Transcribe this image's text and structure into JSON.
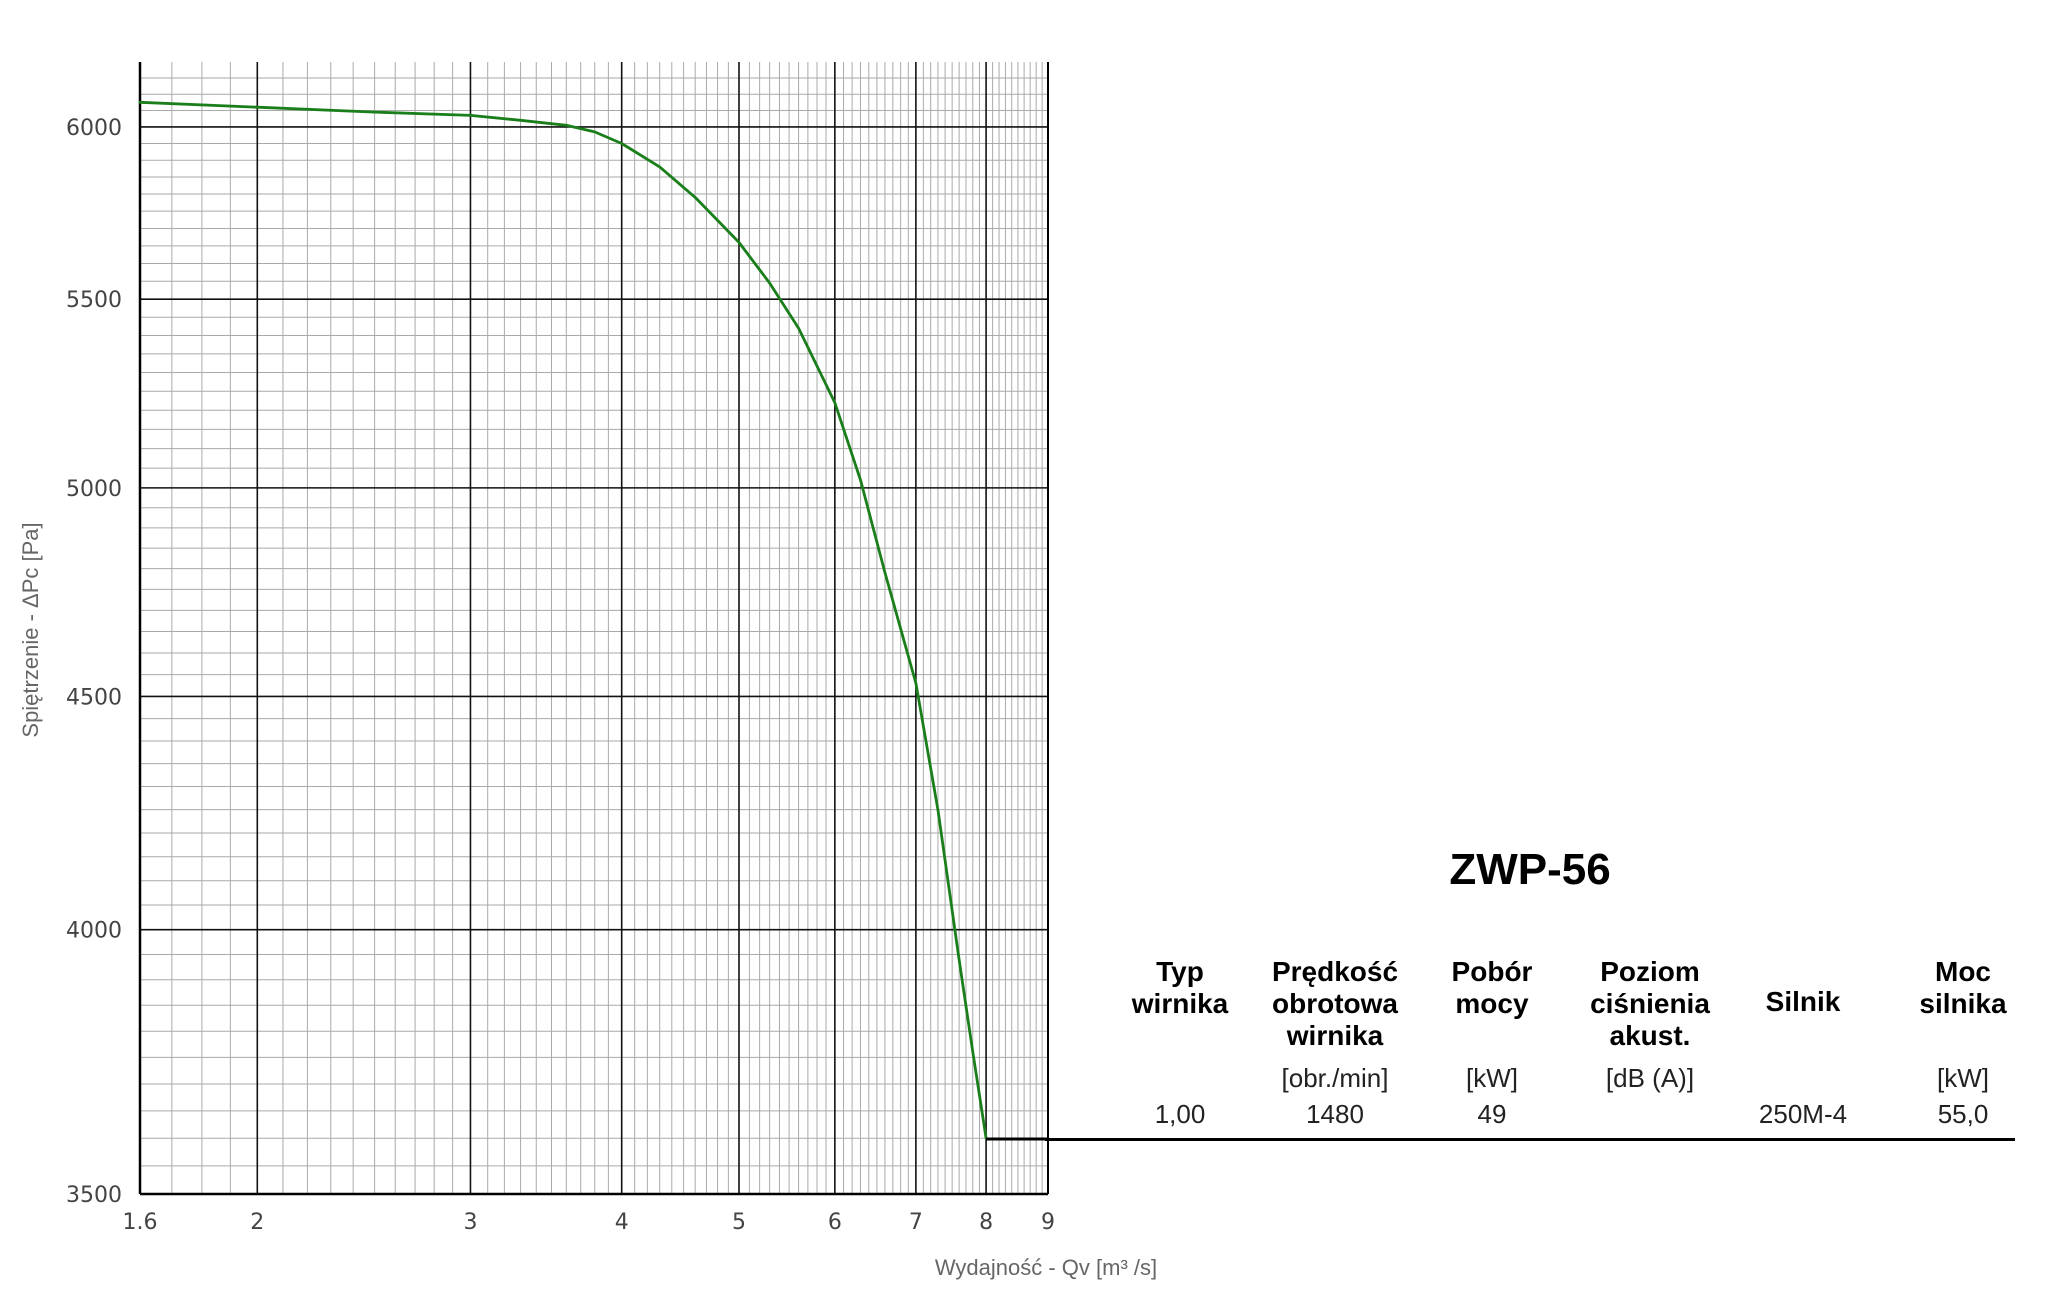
{
  "chart_data": {
    "type": "line",
    "xlabel": "Wydajność - Qv [m³ /s]",
    "ylabel": "Spiętrzenie - ΔPc [Pa]",
    "x_scale": "log",
    "y_scale": "log",
    "xlim": [
      1.6,
      9
    ],
    "ylim": [
      3500,
      6200
    ],
    "x_ticks": [
      "1.6",
      "2",
      "3",
      "4",
      "5",
      "6",
      "7",
      "8",
      "9"
    ],
    "y_ticks": [
      "3500",
      "4000",
      "4500",
      "5000",
      "5500",
      "6000"
    ],
    "grid": true,
    "series": [
      {
        "color": "#1a7f1a",
        "x": [
          1.6,
          2.0,
          2.5,
          3.0,
          3.3,
          3.6,
          3.8,
          4.0,
          4.3,
          4.6,
          5.0,
          5.3,
          5.6,
          6.0,
          6.3,
          6.6,
          7.0,
          7.3,
          7.6,
          7.8,
          8.0
        ],
        "y": [
          6075,
          6060,
          6045,
          6035,
          6020,
          6005,
          5985,
          5950,
          5880,
          5790,
          5660,
          5545,
          5420,
          5220,
          5020,
          4790,
          4530,
          4250,
          3940,
          3760,
          3600
        ]
      }
    ]
  },
  "table": {
    "title": "ZWP-56",
    "headers": [
      [
        "Typ",
        "wirnika"
      ],
      [
        "Prędkość",
        "obrotowa",
        "wirnika"
      ],
      [
        "Pobór",
        "mocy"
      ],
      [
        "Poziom",
        "ciśnienia",
        "akust."
      ],
      [
        "Silnik"
      ],
      [
        "Moc",
        "silnika"
      ]
    ],
    "units": [
      "",
      "[obr./min]",
      "[kW]",
      "[dB (A)]",
      "",
      "[kW]"
    ],
    "row": [
      "1,00",
      "1480",
      "49",
      "",
      "250M-4",
      "55,0"
    ]
  }
}
